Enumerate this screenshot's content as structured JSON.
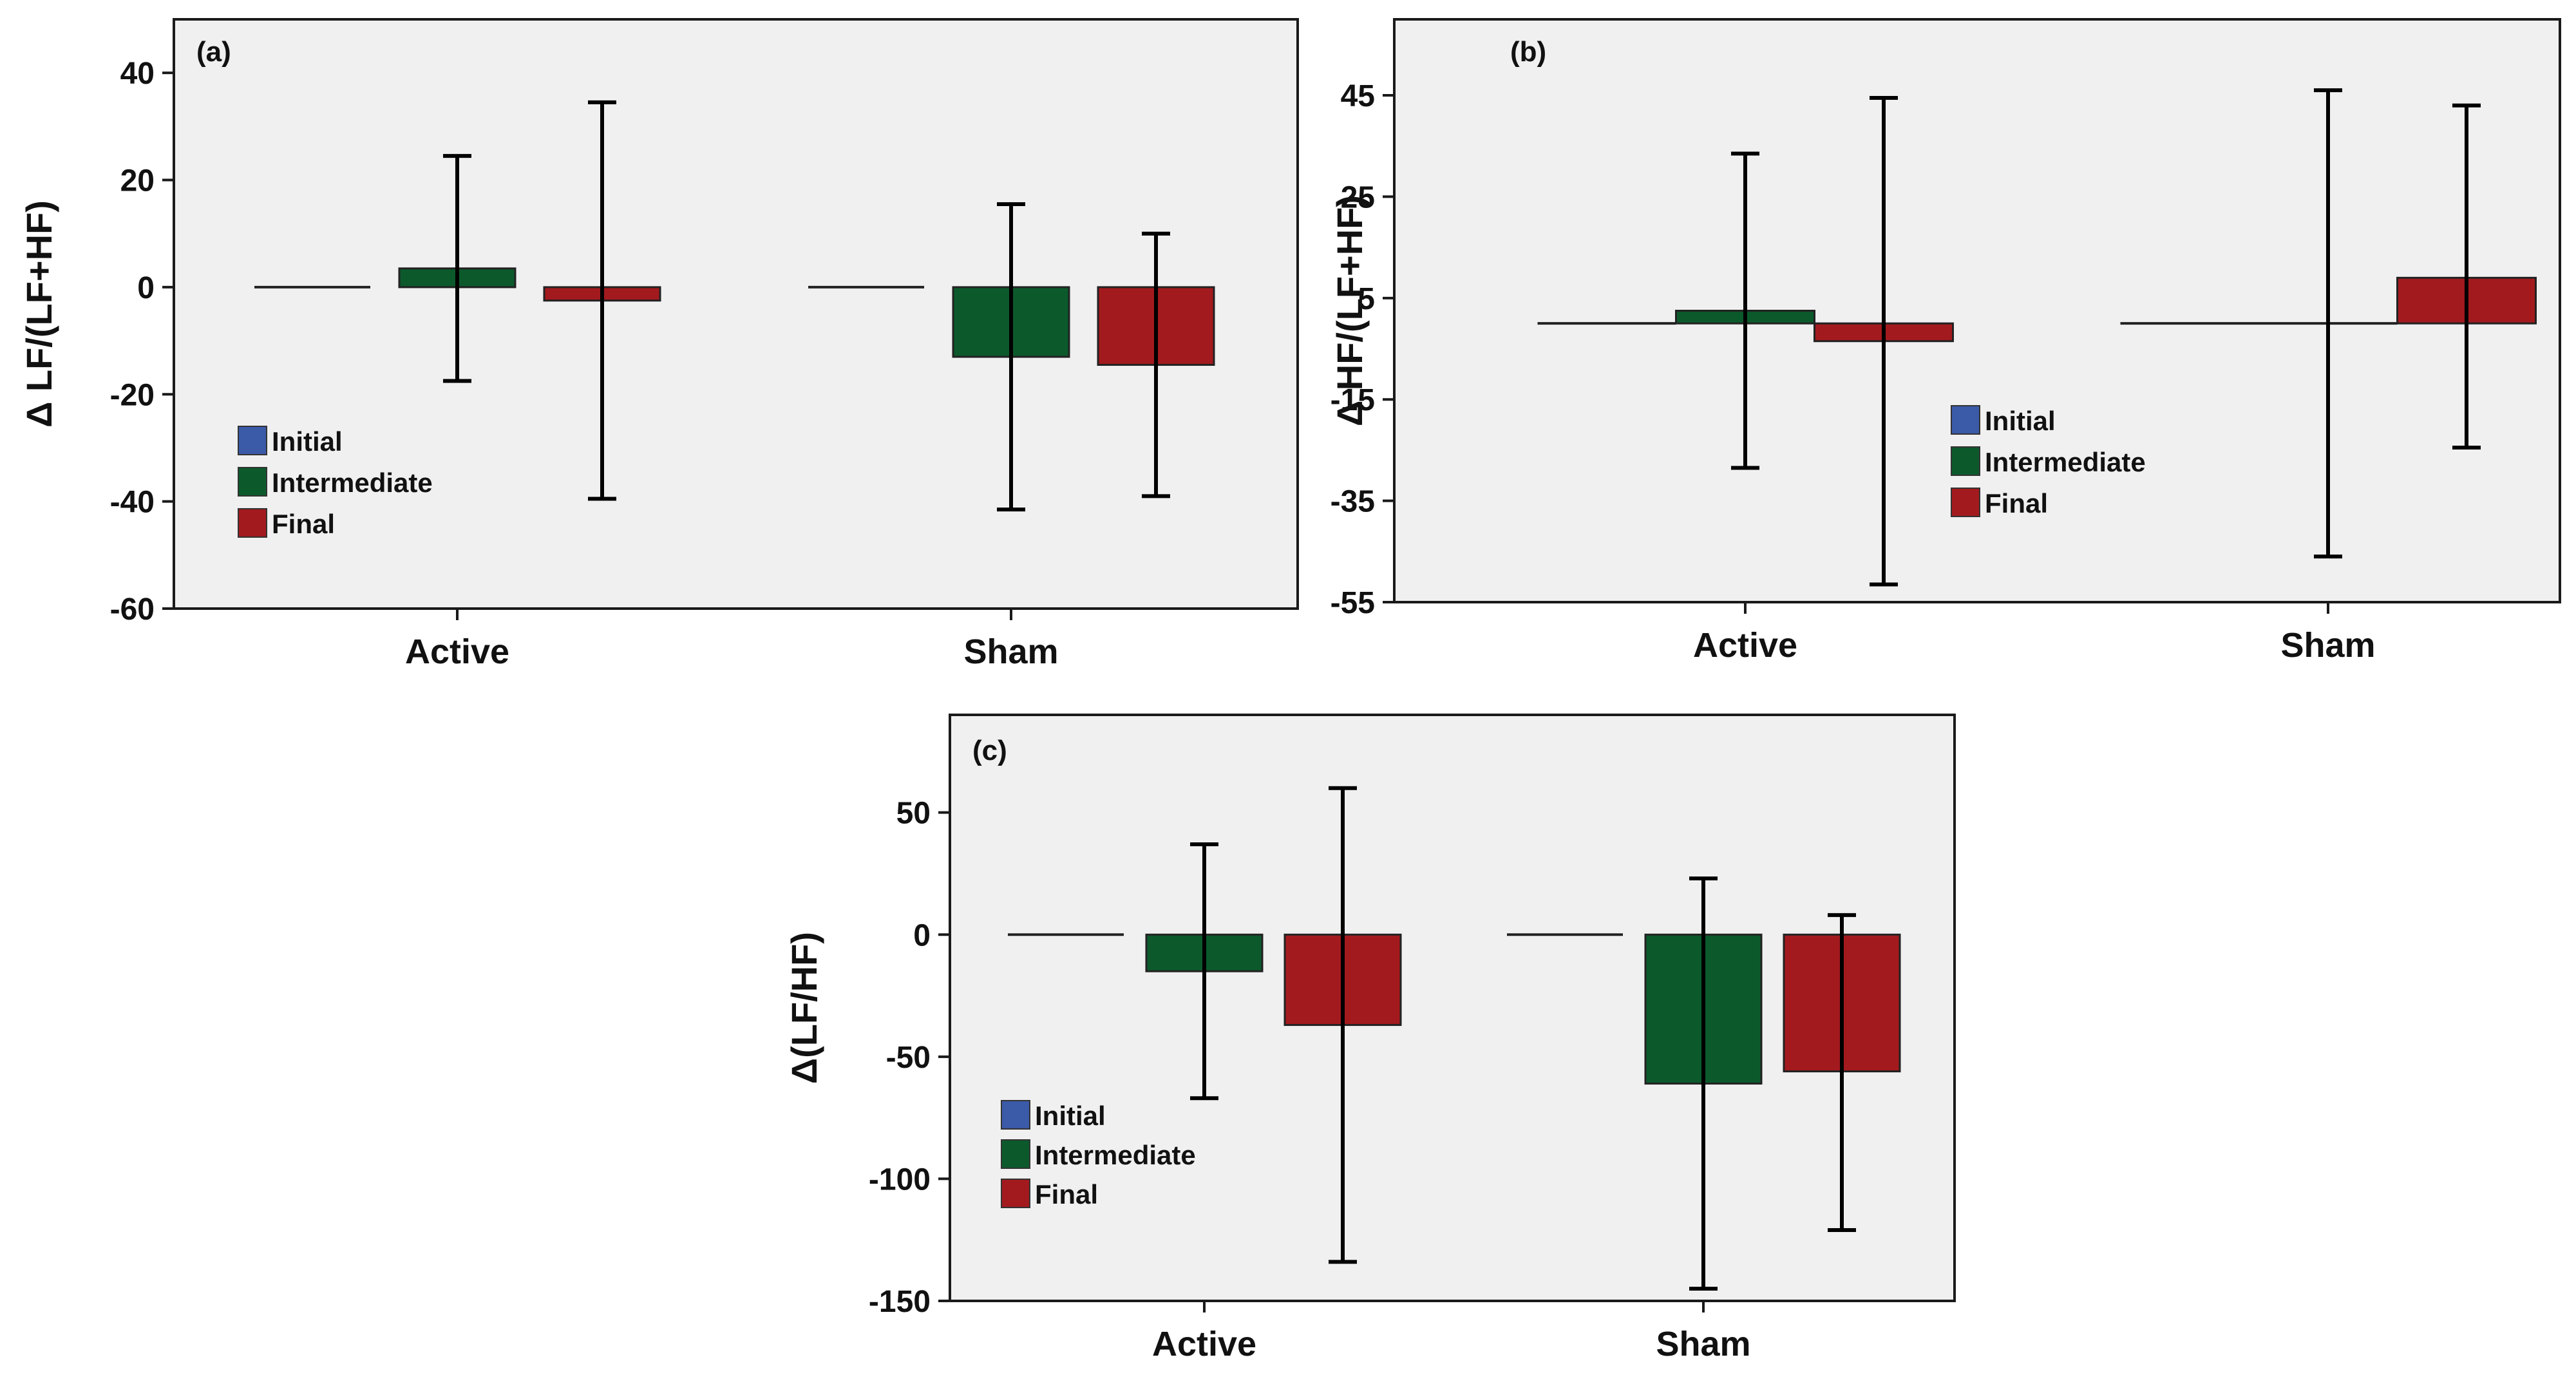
{
  "colors": {
    "plot_bg": "#f0f0f0",
    "frame": "#1a1a1a",
    "initial": "#3b5aa8",
    "intermediate": "#0c5a2c",
    "final": "#a31a1e",
    "error_bar": "#000000"
  },
  "legend_labels": {
    "a": [
      "Initial",
      "Intermediate",
      "Final"
    ],
    "b": [
      "Initial",
      "Intermediate",
      "Final"
    ],
    "c": [
      "Initial",
      "Intermediate",
      "Final"
    ]
  },
  "chart_data": [
    {
      "id": "a",
      "type": "bar",
      "panel_label": "(a)",
      "ylabel": "Δ LF/(LF+HF)",
      "categories": [
        "Active",
        "Sham"
      ],
      "ylim": [
        -60,
        50
      ],
      "yticks": [
        -60,
        -40,
        -20,
        0,
        20,
        40
      ],
      "ytick_labels": [
        "-60",
        "-40",
        "-20",
        "0",
        "20",
        "40"
      ],
      "series": [
        {
          "name": "Initial",
          "values": [
            0,
            0
          ],
          "err_low": [
            0,
            0
          ],
          "err_high": [
            0,
            0
          ]
        },
        {
          "name": "Intermediate",
          "values": [
            3.5,
            -13
          ],
          "err_low": [
            -17.5,
            -41.5
          ],
          "err_high": [
            24.5,
            15.5
          ]
        },
        {
          "name": "Final",
          "values": [
            -2.5,
            -14.5
          ],
          "err_low": [
            -39.5,
            -39
          ],
          "err_high": [
            34.5,
            10
          ]
        }
      ],
      "legend_position": "bottom-left"
    },
    {
      "id": "b",
      "type": "bar",
      "panel_label": "(b)",
      "ylabel": "Δ HF/(LF+HF)",
      "categories": [
        "Active",
        "Sham"
      ],
      "ylim": [
        -55,
        60
      ],
      "yticks": [
        -55,
        -35,
        -15,
        5,
        25,
        45
      ],
      "ytick_labels": [
        "-55",
        "-35",
        "-15",
        "5",
        "25",
        "45"
      ],
      "series": [
        {
          "name": "Initial",
          "values": [
            0,
            0
          ],
          "err_low": [
            0,
            0
          ],
          "err_high": [
            0,
            0
          ]
        },
        {
          "name": "Intermediate",
          "values": [
            2.5,
            0
          ],
          "err_low": [
            -28.5,
            -46
          ],
          "err_high": [
            33.5,
            46
          ]
        },
        {
          "name": "Final",
          "values": [
            -3.5,
            9
          ],
          "err_low": [
            -51.5,
            -24.5
          ],
          "err_high": [
            44.5,
            43
          ]
        }
      ],
      "legend_position": "bottom-center"
    },
    {
      "id": "c",
      "type": "bar",
      "panel_label": "(c)",
      "ylabel": "Δ(LF/HF)",
      "categories": [
        "Active",
        "Sham"
      ],
      "ylim": [
        -150,
        90
      ],
      "yticks": [
        -150,
        -100,
        -50,
        0,
        50
      ],
      "ytick_labels": [
        "-150",
        "-100",
        "-50",
        "0",
        "50"
      ],
      "series": [
        {
          "name": "Initial",
          "values": [
            0,
            0
          ],
          "err_low": [
            0,
            0
          ],
          "err_high": [
            0,
            0
          ]
        },
        {
          "name": "Intermediate",
          "values": [
            -15,
            -61
          ],
          "err_low": [
            -67,
            -145
          ],
          "err_high": [
            37,
            23
          ]
        },
        {
          "name": "Final",
          "values": [
            -37,
            -56
          ],
          "err_low": [
            -134,
            -121
          ],
          "err_high": [
            60,
            8
          ]
        }
      ],
      "legend_position": "bottom-left"
    }
  ]
}
